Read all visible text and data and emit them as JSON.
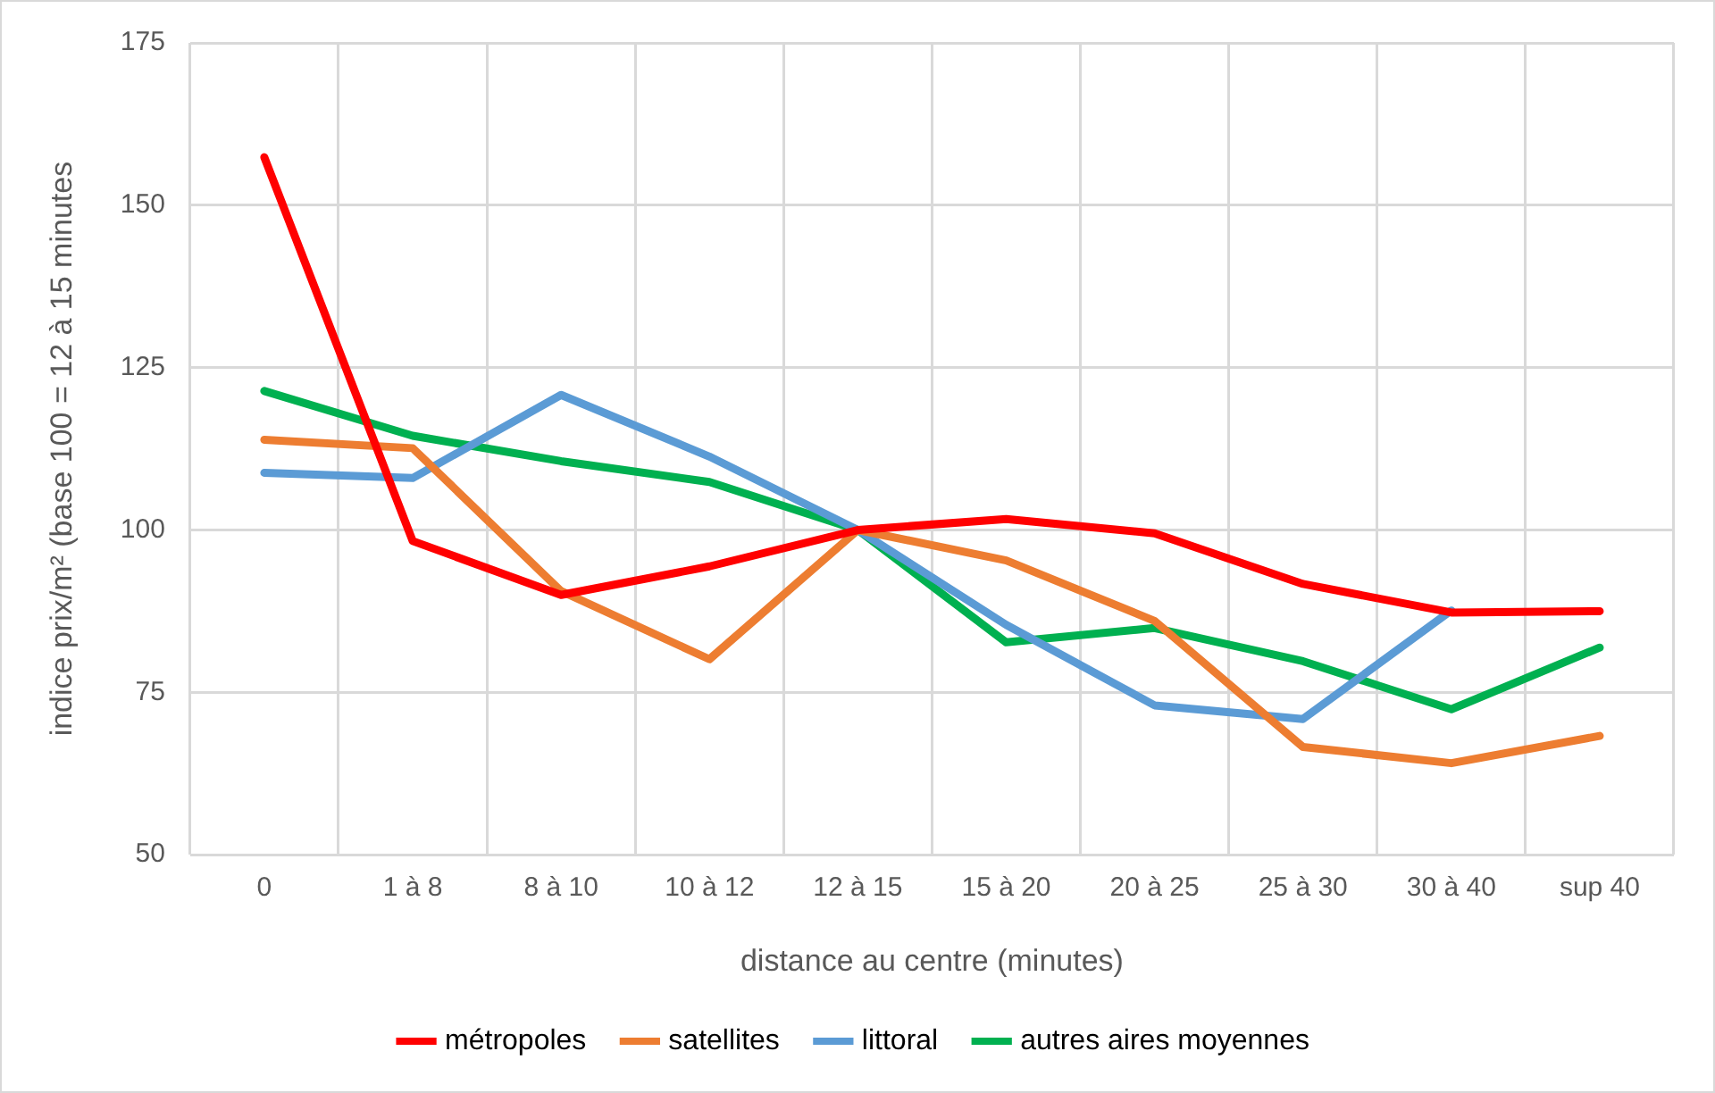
{
  "chart_data": {
    "type": "line",
    "xlabel": "distance au centre (minutes)",
    "ylabel": "indice prix/m² (base 100 = 12 à 15 minutes",
    "categories": [
      "0",
      "1 à 8",
      "8 à 10",
      "10 à 12",
      "12 à 15",
      "15 à 20",
      "20 à 25",
      "25 à 30",
      "30 à 40",
      "sup 40"
    ],
    "series": [
      {
        "name": "métropoles",
        "color": "#ff0000",
        "values": [
          157.4,
          98.3,
          90,
          94.4,
          100,
          101.7,
          99.5,
          91.7,
          87.3,
          87.5
        ]
      },
      {
        "name": "satellites",
        "color": "#ed7d31",
        "values": [
          113.9,
          112.6,
          90.6,
          80.1,
          100,
          95.3,
          86,
          66.6,
          64.1,
          68.3
        ]
      },
      {
        "name": "littoral",
        "color": "#5b9bd5",
        "values": [
          108.8,
          108,
          120.8,
          111.3,
          100,
          85.4,
          73,
          70.9,
          87.6,
          null
        ]
      },
      {
        "name": "autres aires moyennes",
        "color": "#00b050",
        "values": [
          121.4,
          114.5,
          110.6,
          107.4,
          100,
          82.7,
          84.9,
          79.8,
          72.4,
          81.9
        ]
      }
    ],
    "ylim": [
      50,
      175
    ],
    "yticks": [
      50,
      75,
      100,
      125,
      150,
      175
    ],
    "grid": true,
    "legend": "bottom",
    "marker": "none",
    "line_style": "solid"
  }
}
